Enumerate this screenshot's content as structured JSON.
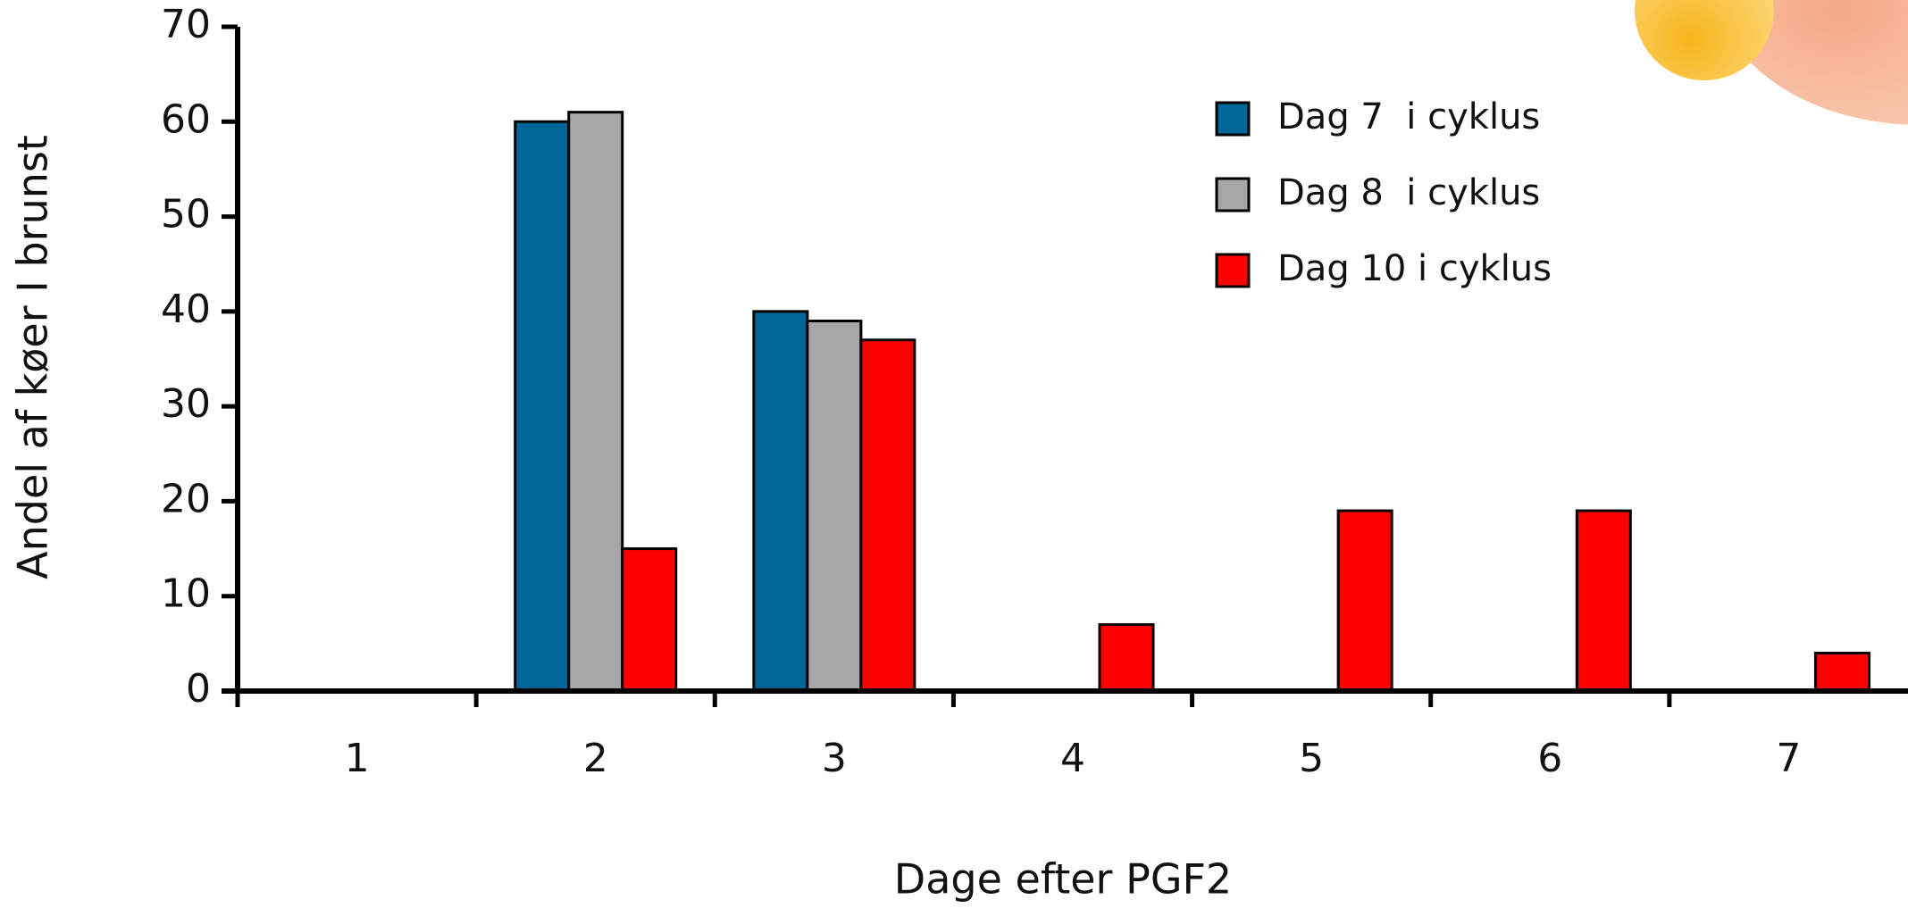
{
  "chart_data": {
    "type": "bar",
    "x_label": "Dage efter PGF2",
    "y_label": "Andel af køer I brunst",
    "categories": [
      "1",
      "2",
      "3",
      "4",
      "5",
      "6",
      "7"
    ],
    "series": [
      {
        "name": "Dag 7  i cyklus",
        "color": "#006699",
        "values": [
          0,
          60,
          40,
          0,
          0,
          0,
          0
        ]
      },
      {
        "name": "Dag 8  i cyklus",
        "color": "#a6a6a6",
        "values": [
          0,
          61,
          39,
          0,
          0,
          0,
          0
        ]
      },
      {
        "name": "Dag 10 i cyklus",
        "color": "#ff0000",
        "values": [
          0,
          15,
          37,
          7,
          19,
          19,
          4
        ]
      }
    ],
    "ylim": [
      0,
      70
    ],
    "yticks": [
      0,
      10,
      20,
      30,
      40,
      50,
      60,
      70
    ],
    "legend": "upper right"
  }
}
